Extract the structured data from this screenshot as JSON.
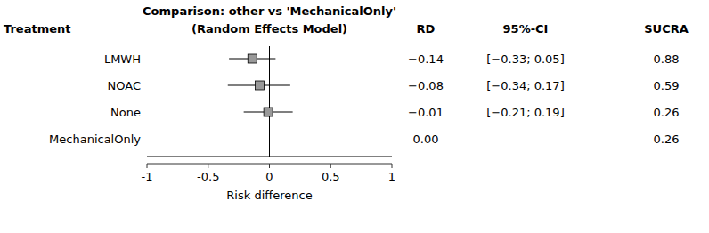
{
  "chart_data": {
    "type": "forest",
    "title": "Comparison: other vs 'MechanicalOnly'",
    "subtitle": "(Random Effects Model)",
    "column_headers": [
      "Treatment",
      "RD",
      "95%-CI",
      "SUCRA"
    ],
    "xlabel": "Risk difference",
    "categories": [
      "LMWH",
      "NOAC",
      "None",
      "MechanicalOnly"
    ],
    "values": [
      -0.14,
      -0.08,
      -0.01,
      0.0
    ],
    "value_labels": [
      "−0.14",
      "−0.08",
      "−0.01",
      "0.00"
    ],
    "ci_lower": [
      -0.33,
      -0.34,
      -0.21,
      null
    ],
    "ci_upper": [
      0.05,
      0.17,
      0.19,
      null
    ],
    "ci_labels": [
      "[−0.33; 0.05]",
      "[−0.34; 0.17]",
      "[−0.21; 0.19]",
      null
    ],
    "sucra": [
      0.88,
      0.59,
      0.26,
      0.26
    ],
    "reference_line": 0,
    "xlim": [
      -1,
      1
    ],
    "xticks": [
      -1,
      -0.5,
      0,
      0.5,
      1
    ],
    "color": "#999999"
  }
}
